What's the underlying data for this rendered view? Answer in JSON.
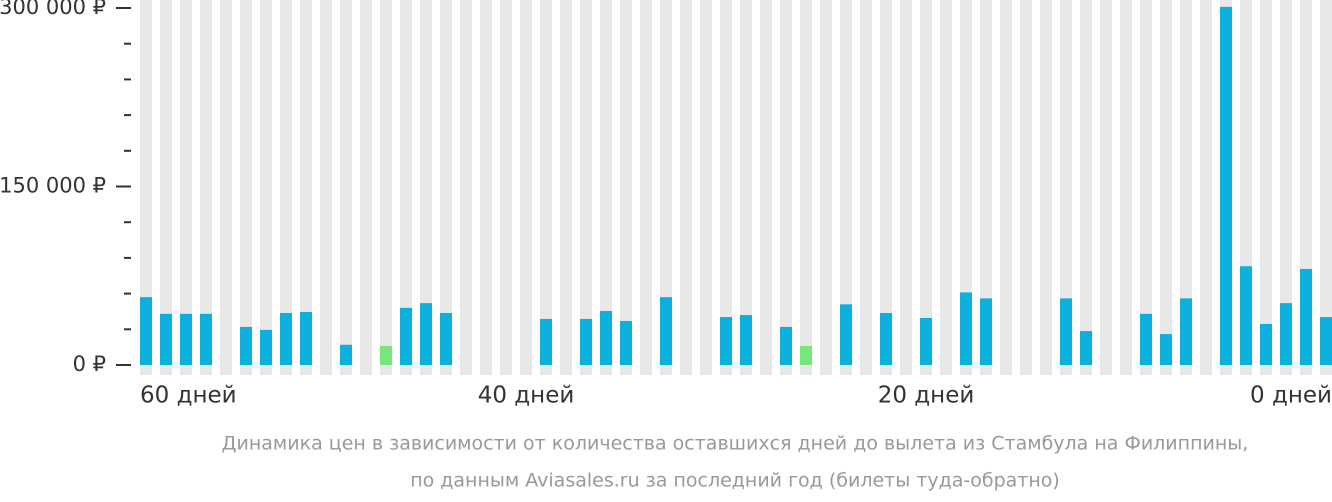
{
  "chart_data": {
    "type": "bar",
    "caption": [
      "Динамика цен в зависимости от количества оставшихся дней до вылета из Стамбула на Филиппины,",
      "по данным Aviasales.ru за последний год (билеты туда-обратно)"
    ],
    "categories": [
      "60 дней",
      null,
      null,
      null,
      null,
      null,
      null,
      null,
      null,
      null,
      null,
      null,
      null,
      null,
      null,
      null,
      null,
      null,
      null,
      "40 дней",
      null,
      null,
      null,
      null,
      null,
      null,
      null,
      null,
      null,
      null,
      null,
      null,
      null,
      null,
      null,
      null,
      null,
      null,
      null,
      "20 дней",
      null,
      null,
      null,
      null,
      null,
      null,
      null,
      null,
      null,
      null,
      null,
      null,
      null,
      null,
      null,
      null,
      null,
      null,
      null,
      "0 дней"
    ],
    "values": [
      57000,
      43000,
      43000,
      43000,
      null,
      32000,
      29500,
      43700,
      44500,
      null,
      17000,
      null,
      16000,
      48000,
      52000,
      43700,
      null,
      null,
      null,
      null,
      38700,
      null,
      38700,
      45400,
      37000,
      null,
      57000,
      null,
      null,
      40300,
      42000,
      null,
      32000,
      16000,
      null,
      51000,
      null,
      43700,
      null,
      39500,
      null,
      61000,
      56000,
      null,
      null,
      null,
      56000,
      28500,
      null,
      null,
      43000,
      26000,
      56000,
      null,
      301000,
      83000,
      34500,
      52000,
      80700,
      40300
    ],
    "color": "#0bb0dd",
    "min_color": "#77e67d",
    "background_color": "#e8e8e8",
    "ylim": [
      0,
      300000
    ],
    "yticks": [
      {
        "value": 0,
        "label": "0 ₽"
      },
      {
        "value": 150000,
        "label": "150 000 ₽"
      },
      {
        "value": 300000,
        "label": "300 000 ₽"
      }
    ],
    "minor_yticks": [
      30000,
      60000,
      90000,
      120000,
      180000,
      210000,
      240000,
      270000
    ]
  }
}
